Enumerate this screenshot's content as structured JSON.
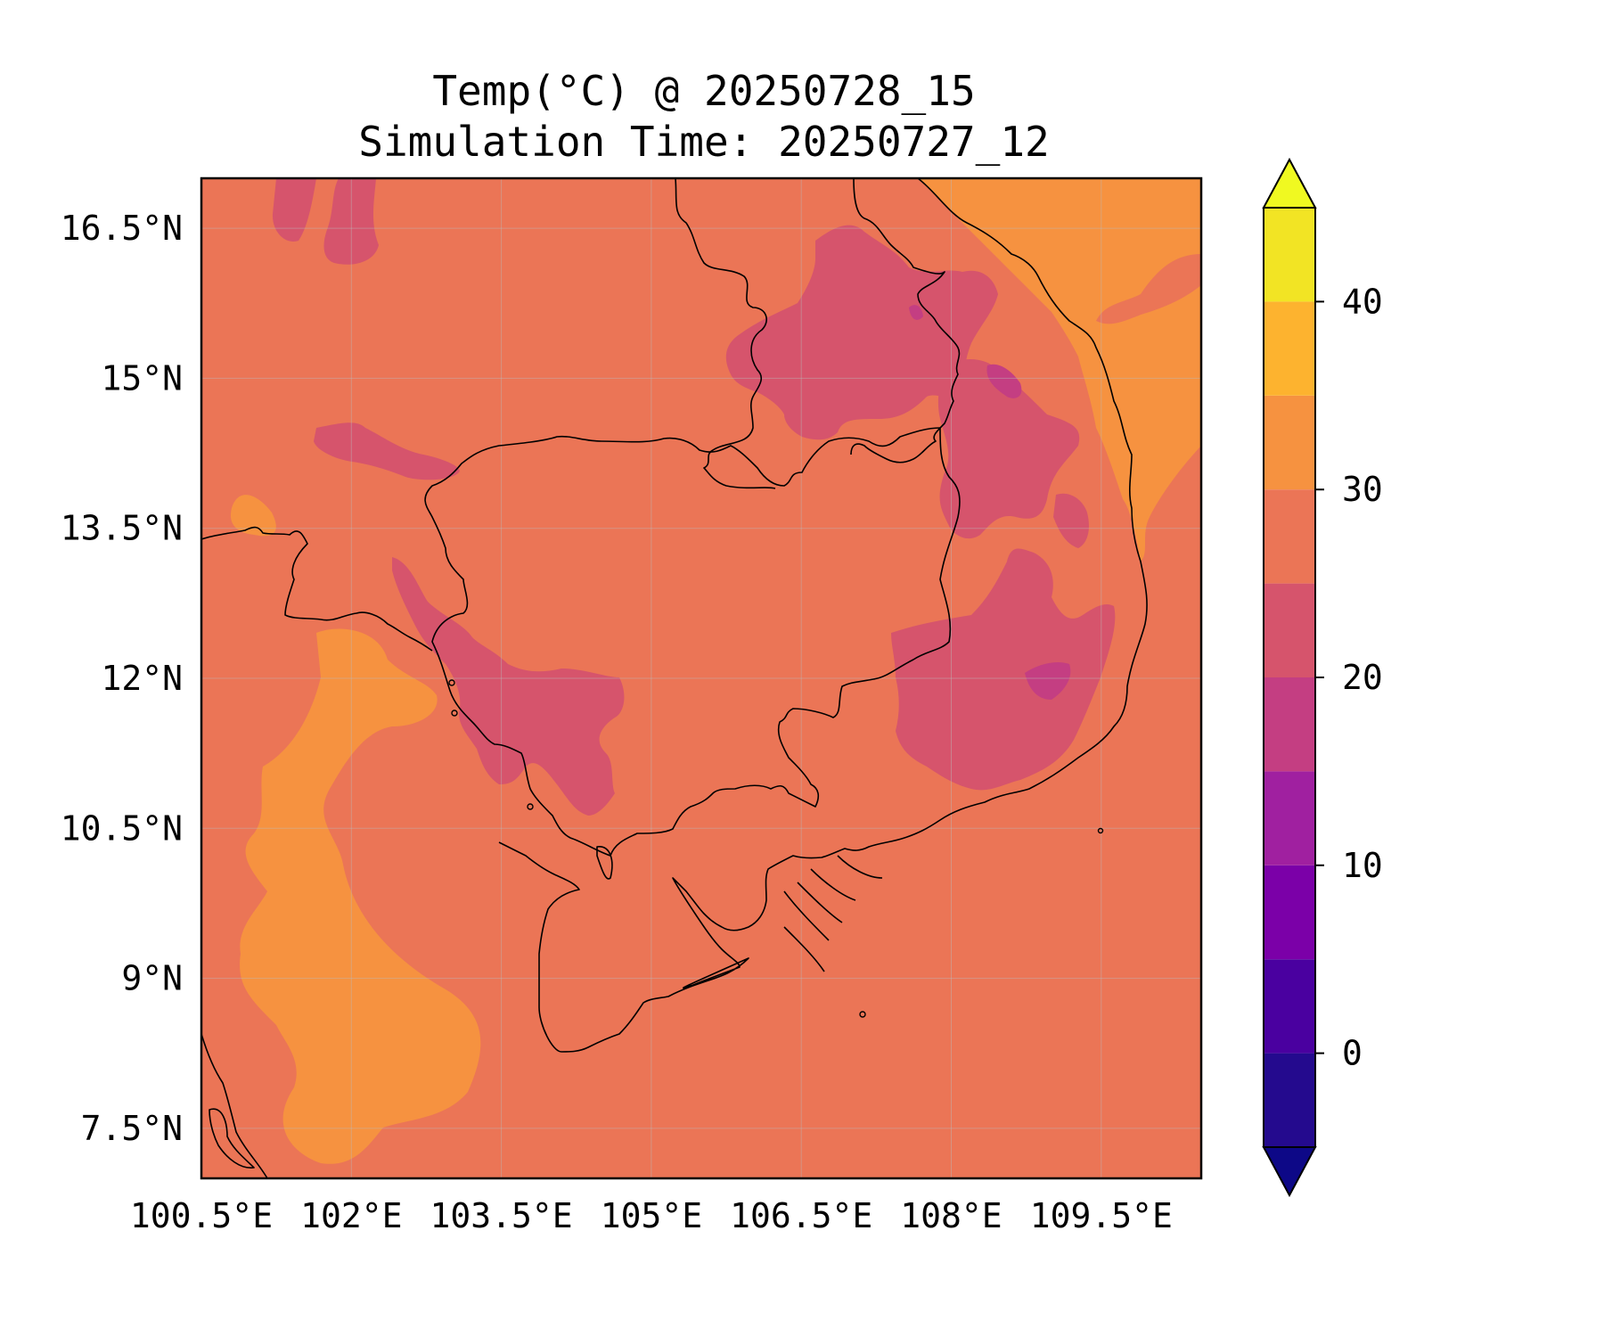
{
  "title": {
    "line1": "Temp(°C) @ 20250728_15",
    "line2": "Simulation Time: 20250727_12"
  },
  "map": {
    "lon_range": [
      100.5,
      110.5
    ],
    "lat_range": [
      7.0,
      17.0
    ],
    "x_ticks": [
      "100.5°E",
      "102°E",
      "103.5°E",
      "105°E",
      "106.5°E",
      "108°E",
      "109.5°E"
    ],
    "x_tick_values": [
      100.5,
      102,
      103.5,
      105,
      106.5,
      108,
      109.5
    ],
    "y_ticks": [
      "16.5°N",
      "15°N",
      "13.5°N",
      "12°N",
      "10.5°N",
      "9°N",
      "7.5°N"
    ],
    "y_tick_values": [
      16.5,
      15,
      13.5,
      12,
      10.5,
      9,
      7.5
    ],
    "grid": true,
    "background_level_color": "#eb7556"
  },
  "colorbar": {
    "levels": [
      -5,
      0,
      5,
      10,
      15,
      20,
      25,
      30,
      35,
      40,
      45
    ],
    "colors": [
      "#240a8e",
      "#4a00a0",
      "#7b00a8",
      "#a020a0",
      "#c43e82",
      "#d6546c",
      "#eb7556",
      "#f69240",
      "#fdb32f",
      "#f2e424"
    ],
    "under_color": "#0d0887",
    "over_color": "#f0f921",
    "tick_labels": [
      "0",
      "10",
      "20",
      "30",
      "40"
    ],
    "tick_values": [
      0,
      10,
      20,
      30,
      40
    ],
    "extend": "both"
  }
}
